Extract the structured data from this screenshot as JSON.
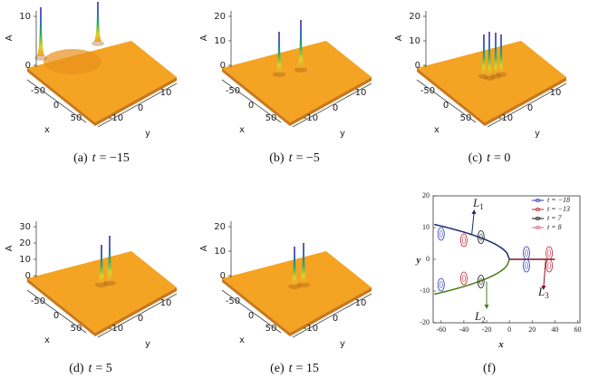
{
  "panels": [
    {
      "caption": {
        "label": "(a)",
        "var": "t",
        "value": "= −15"
      },
      "z_label": "A",
      "z_ticks": [
        "0",
        "10"
      ],
      "x_label": "x",
      "x_ticks": [
        "-50",
        "0",
        "50"
      ],
      "y_label": "y",
      "y_ticks": [
        "-10",
        "0",
        "10"
      ]
    },
    {
      "caption": {
        "label": "(b)",
        "var": "t",
        "value": "= −5"
      },
      "z_label": "A",
      "z_ticks": [
        "0",
        "10",
        "20"
      ],
      "x_label": "x",
      "x_ticks": [
        "-50",
        "0",
        "50"
      ],
      "y_label": "y",
      "y_ticks": [
        "-10",
        "0",
        "10"
      ]
    },
    {
      "caption": {
        "label": "(c)",
        "var": "t",
        "value": "= 0"
      },
      "z_label": "A",
      "z_ticks": [
        "0",
        "10",
        "20"
      ],
      "x_label": "x",
      "x_ticks": [
        "-50",
        "0",
        "50"
      ],
      "y_label": "y",
      "y_ticks": [
        "-10",
        "0",
        "10"
      ]
    },
    {
      "caption": {
        "label": "(d)",
        "var": "t",
        "value": "= 5"
      },
      "z_label": "A",
      "z_ticks": [
        "0",
        "10",
        "20",
        "30"
      ],
      "x_label": "x",
      "x_ticks": [
        "-50",
        "0",
        "50"
      ],
      "y_label": "y",
      "y_ticks": [
        "-10",
        "0",
        "10"
      ]
    },
    {
      "caption": {
        "label": "(e)",
        "var": "t",
        "value": "= 15"
      },
      "z_label": "A",
      "z_ticks": [
        "0",
        "10",
        "20"
      ],
      "x_label": "x",
      "x_ticks": [
        "-50",
        "0",
        "50"
      ],
      "y_label": "y",
      "y_ticks": [
        "-10",
        "0",
        "10"
      ]
    }
  ],
  "panel_f": {
    "caption": "(f)",
    "x_label": "x",
    "y_label": "y",
    "x_ticks": [
      "-60",
      "-40",
      "-20",
      "0",
      "20",
      "40",
      "60"
    ],
    "y_ticks": [
      "20",
      "10",
      "0",
      "-10",
      "-20"
    ],
    "legend": [
      "t = −18",
      "t = −13",
      "t = 7",
      "t = 8"
    ],
    "annotations": [
      {
        "letter": "L",
        "sub": "1"
      },
      {
        "letter": "L",
        "sub": "2"
      },
      {
        "letter": "L",
        "sub": "3"
      }
    ]
  }
}
